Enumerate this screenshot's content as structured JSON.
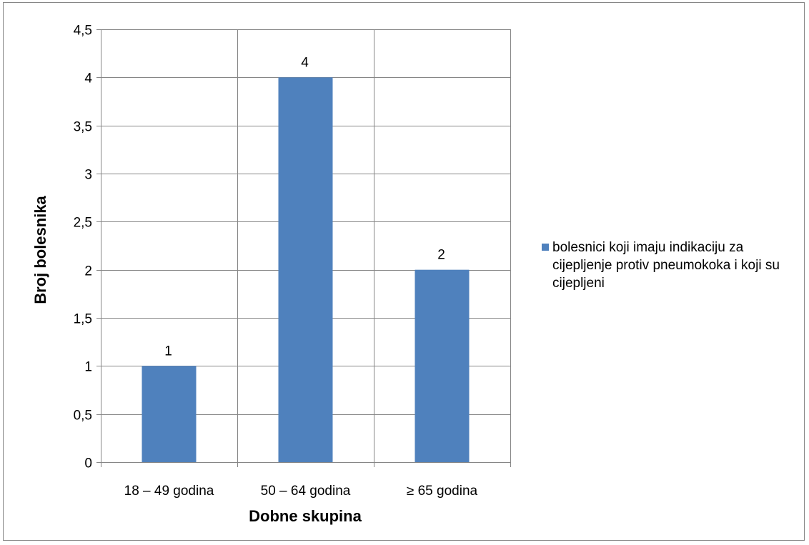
{
  "chart_data": {
    "type": "bar",
    "categories": [
      "18 – 49 godina",
      "50 – 64 godina",
      "≥ 65 godina"
    ],
    "series": [
      {
        "name": "bolesnici koji imaju indikaciju za cijepljenje protiv pneumokoka i koji su cijepljeni",
        "values": [
          1,
          4,
          2
        ],
        "color": "#4F81BD"
      }
    ],
    "data_labels": [
      "1",
      "4",
      "2"
    ],
    "xlabel": "Dobne skupina",
    "ylabel": "Broj bolesnika",
    "ylim": [
      0,
      4.5
    ],
    "yticks": [
      0,
      0.5,
      1,
      1.5,
      2,
      2.5,
      3,
      3.5,
      4,
      4.5
    ],
    "ytick_labels": [
      "0",
      "0,5",
      "1",
      "1,5",
      "2",
      "2,5",
      "3",
      "3,5",
      "4",
      "4,5"
    ],
    "grid": true,
    "gridline_color": "#868686",
    "legend_position": "right"
  }
}
